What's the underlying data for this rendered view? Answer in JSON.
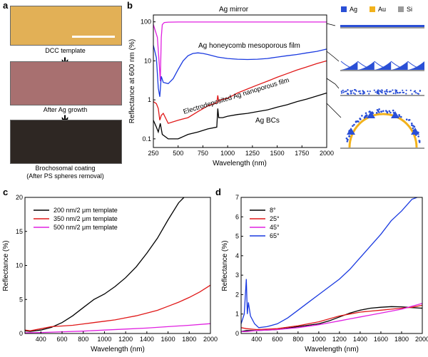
{
  "panels": {
    "a": "a",
    "b": "b",
    "c": "c",
    "d": "d"
  },
  "panel_a": {
    "captions": [
      "DCC template",
      "After Ag growth",
      "Brochosomal coating",
      "(After PS spheres removal)"
    ],
    "colors": {
      "dcc": "#e2b056",
      "ag_growth": "#a87070",
      "brochosomal": "#2e2723",
      "scale_bar": "#ffffff"
    }
  },
  "schematic": {
    "legend": [
      {
        "label": "Ag",
        "color": "#2a4fd6"
      },
      {
        "label": "Au",
        "color": "#f2b21c"
      },
      {
        "label": "Si",
        "color": "#9a9a9a"
      }
    ]
  },
  "chart_data": [
    {
      "type": "line",
      "panel": "b",
      "xlabel": "Wavelength (nm)",
      "ylabel": "Reflectance at 600 nm (%)",
      "xlim": [
        250,
        2000
      ],
      "ylim": [
        0.06,
        150
      ],
      "yscale": "log",
      "xticks": [
        "250",
        "500",
        "750",
        "1000",
        "1250",
        "1500",
        "1750",
        "2000"
      ],
      "yticks": [
        "0.1",
        "1",
        "10",
        "100"
      ],
      "grid": false,
      "annotations": [
        "Ag mirror",
        "Ag honeycomb mesoporous film",
        "Electrodeposited Ag nanoporous film",
        "Ag BCs"
      ],
      "series": [
        {
          "color": "#e020e0",
          "x": [
            250,
            290,
            310,
            320,
            330,
            340,
            360,
            400,
            500,
            1000,
            1500,
            2000
          ],
          "y": [
            85,
            40,
            8,
            3,
            40,
            85,
            96,
            98,
            99,
            99,
            99,
            99
          ]
        },
        {
          "color": "#1a3ae0",
          "x": [
            250,
            280,
            300,
            315,
            330,
            350,
            400,
            450,
            500,
            550,
            600,
            650,
            700,
            750,
            800,
            900,
            1000,
            1100,
            1200,
            1300,
            1400,
            1500,
            1600,
            1700,
            1800,
            1900,
            2000
          ],
          "y": [
            25,
            12,
            2,
            1.2,
            4,
            2.8,
            2.6,
            3.5,
            6,
            10,
            13.5,
            15.5,
            16,
            15.5,
            14.5,
            12.5,
            11.5,
            11,
            10.8,
            11,
            11.5,
            12.5,
            13.5,
            14.5,
            16,
            17.5,
            20
          ]
        },
        {
          "color": "#e01818",
          "x": [
            250,
            280,
            300,
            315,
            330,
            350,
            400,
            500,
            600,
            700,
            800,
            890,
            900,
            910,
            930,
            1000,
            1100,
            1200,
            1300,
            1400,
            1500,
            1600,
            1700,
            1800,
            1900,
            2000
          ],
          "y": [
            0.9,
            0.8,
            0.6,
            0.3,
            0.4,
            0.45,
            0.25,
            0.3,
            0.35,
            0.5,
            0.7,
            0.85,
            1.3,
            0.9,
            1.0,
            1.1,
            1.5,
            1.9,
            2.4,
            3.0,
            3.8,
            4.7,
            5.8,
            7.0,
            8.5,
            10
          ]
        },
        {
          "color": "#000000",
          "x": [
            250,
            280,
            300,
            320,
            340,
            400,
            500,
            600,
            700,
            800,
            890,
            900,
            910,
            950,
            1000,
            1100,
            1200,
            1300,
            1400,
            1500,
            1600,
            1700,
            1800,
            1900,
            2000
          ],
          "y": [
            0.3,
            0.2,
            0.15,
            0.25,
            0.13,
            0.1,
            0.1,
            0.13,
            0.15,
            0.18,
            0.2,
            0.6,
            0.35,
            0.35,
            0.38,
            0.42,
            0.45,
            0.5,
            0.55,
            0.65,
            0.75,
            0.9,
            1.05,
            1.25,
            1.5
          ]
        }
      ]
    },
    {
      "type": "line",
      "panel": "c",
      "xlabel": "Wavelength (nm)",
      "ylabel": "Reflectance (%)",
      "xlim": [
        250,
        2000
      ],
      "ylim": [
        0,
        20
      ],
      "xticks": [
        "400",
        "600",
        "800",
        "1000",
        "1200",
        "1400",
        "1600",
        "1800",
        "2000"
      ],
      "yticks": [
        "0",
        "5",
        "10",
        "15",
        "20"
      ],
      "legend_position": "top-left",
      "series": [
        {
          "name": "200 nm/2 μm template",
          "color": "#000000",
          "x": [
            250,
            300,
            400,
            500,
            600,
            700,
            800,
            900,
            1000,
            1100,
            1200,
            1300,
            1400,
            1500,
            1600,
            1700,
            1750
          ],
          "y": [
            0.4,
            0.3,
            0.5,
            0.9,
            1.6,
            2.6,
            3.8,
            5.0,
            5.8,
            6.9,
            8.2,
            9.8,
            11.8,
            14.0,
            16.7,
            19.2,
            20
          ]
        },
        {
          "name": "350 nm/2 μm template",
          "color": "#e01818",
          "x": [
            250,
            300,
            400,
            500,
            600,
            700,
            800,
            900,
            1000,
            1100,
            1200,
            1300,
            1400,
            1500,
            1600,
            1700,
            1800,
            1900,
            2000
          ],
          "y": [
            0.5,
            0.4,
            0.7,
            1.0,
            1.1,
            1.2,
            1.4,
            1.6,
            1.8,
            2.0,
            2.3,
            2.6,
            3.0,
            3.4,
            4.0,
            4.6,
            5.3,
            6.1,
            7.1
          ]
        },
        {
          "name": "500 nm/2 μm template",
          "color": "#e020e0",
          "x": [
            250,
            400,
            600,
            800,
            1000,
            1200,
            1400,
            1600,
            1800,
            2000
          ],
          "y": [
            0.1,
            0.15,
            0.25,
            0.35,
            0.5,
            0.65,
            0.8,
            1.0,
            1.2,
            1.45
          ]
        }
      ]
    },
    {
      "type": "line",
      "panel": "d",
      "xlabel": "Wavelength (nm)",
      "ylabel": "Reflectance (%)",
      "xlim": [
        250,
        2000
      ],
      "ylim": [
        0,
        7
      ],
      "xticks": [
        "400",
        "600",
        "800",
        "1000",
        "1200",
        "1400",
        "1600",
        "1800",
        "2000"
      ],
      "yticks": [
        "0",
        "1",
        "2",
        "3",
        "4",
        "5",
        "6",
        "7"
      ],
      "legend_position": "top-left",
      "series": [
        {
          "name": "8°",
          "color": "#000000",
          "x": [
            250,
            300,
            400,
            600,
            800,
            1000,
            1100,
            1200,
            1300,
            1400,
            1500,
            1600,
            1700,
            1800,
            1900,
            2000
          ],
          "y": [
            0.1,
            0.15,
            0.15,
            0.2,
            0.35,
            0.5,
            0.65,
            0.85,
            1.05,
            1.2,
            1.3,
            1.35,
            1.38,
            1.37,
            1.33,
            1.3
          ]
        },
        {
          "name": "25°",
          "color": "#e01818",
          "x": [
            250,
            300,
            400,
            600,
            800,
            1000,
            1100,
            1200,
            1300,
            1400,
            1500,
            1600,
            1700,
            1800,
            1900,
            2000
          ],
          "y": [
            0.3,
            0.25,
            0.2,
            0.25,
            0.4,
            0.6,
            0.75,
            0.9,
            1.0,
            1.1,
            1.15,
            1.2,
            1.25,
            1.3,
            1.35,
            1.45
          ]
        },
        {
          "name": "45°",
          "color": "#e020e0",
          "x": [
            250,
            300,
            400,
            600,
            800,
            1000,
            1100,
            1200,
            1300,
            1400,
            1500,
            1600,
            1700,
            1800,
            1900,
            2000
          ],
          "y": [
            0.1,
            0.1,
            0.15,
            0.2,
            0.3,
            0.45,
            0.55,
            0.65,
            0.75,
            0.85,
            0.95,
            1.05,
            1.15,
            1.25,
            1.4,
            1.55
          ]
        },
        {
          "name": "65°",
          "color": "#1a3ae0",
          "x": [
            250,
            280,
            300,
            310,
            320,
            340,
            380,
            420,
            500,
            600,
            700,
            800,
            900,
            1000,
            1100,
            1200,
            1300,
            1400,
            1500,
            1600,
            1700,
            1800,
            1900,
            1950
          ],
          "y": [
            0.5,
            1.0,
            2.8,
            1.0,
            1.6,
            0.9,
            0.5,
            0.3,
            0.35,
            0.5,
            0.8,
            1.2,
            1.6,
            2.0,
            2.4,
            2.8,
            3.3,
            3.9,
            4.5,
            5.1,
            5.8,
            6.3,
            6.9,
            7.0
          ]
        }
      ]
    }
  ]
}
